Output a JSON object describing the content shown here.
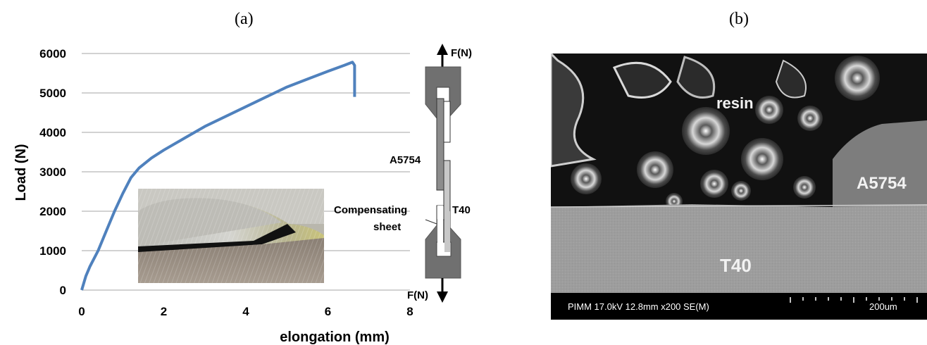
{
  "panels": {
    "a_label": "(a)",
    "b_label": "(b)"
  },
  "chart_data": {
    "type": "line",
    "xlabel": "elongation (mm)",
    "ylabel": "Load (N)",
    "xlim": [
      0,
      8
    ],
    "ylim": [
      0,
      6000
    ],
    "x_ticks": [
      "0",
      "2",
      "4",
      "6",
      "8"
    ],
    "y_ticks": [
      "0",
      "1000",
      "2000",
      "3000",
      "4000",
      "5000",
      "6000"
    ],
    "grid": "horizontal",
    "series": [
      {
        "color": "#4f81bd",
        "x": [
          0,
          0.1,
          0.2,
          0.4,
          0.6,
          0.8,
          1.0,
          1.2,
          1.4,
          1.7,
          2.0,
          2.5,
          3.0,
          3.5,
          4.0,
          4.5,
          5.0,
          5.5,
          6.0,
          6.4,
          6.6,
          6.65,
          6.65
        ],
        "y": [
          0,
          350,
          600,
          1000,
          1500,
          2000,
          2450,
          2850,
          3100,
          3350,
          3550,
          3850,
          4150,
          4400,
          4650,
          4900,
          5150,
          5350,
          5550,
          5700,
          5780,
          5700,
          4900
        ]
      }
    ]
  },
  "diagram": {
    "force_top": "F(N)",
    "force_bottom": "F(N)",
    "label_a5754": "A5754",
    "label_t40": "T40",
    "label_comp_line1": "Compensating",
    "label_comp_line2": "sheet"
  },
  "sem_image": {
    "label_resin": "resin",
    "label_a5754": "A5754",
    "label_t40": "T40",
    "info": "PIMM 17.0kV 12.8mm x200 SE(M)",
    "scale": "200um"
  }
}
